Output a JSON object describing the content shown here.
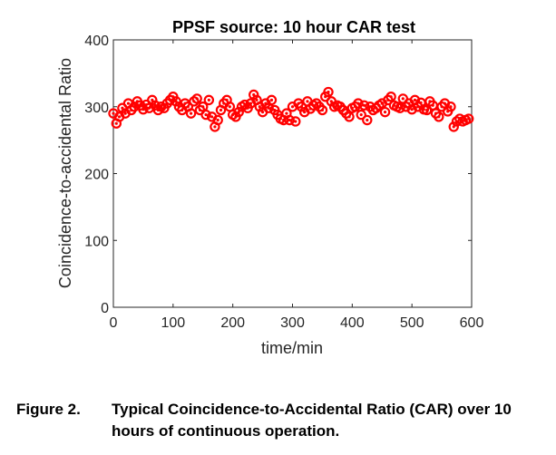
{
  "chart_data": {
    "type": "scatter",
    "title": "PPSF source: 10 hour CAR test",
    "xlabel": "time/min",
    "ylabel": "Coincidence-to-accidental Ratio",
    "xlim": [
      0,
      600
    ],
    "ylim": [
      0,
      400
    ],
    "xticks": [
      0,
      100,
      200,
      300,
      400,
      500,
      600
    ],
    "yticks": [
      0,
      100,
      200,
      300,
      400
    ],
    "grid": false,
    "marker": "circle",
    "series": [
      {
        "name": "CAR",
        "color": "#ff0000",
        "x": [
          0,
          5,
          10,
          15,
          20,
          25,
          30,
          35,
          40,
          45,
          50,
          55,
          60,
          65,
          70,
          75,
          80,
          85,
          90,
          95,
          100,
          105,
          110,
          115,
          120,
          125,
          130,
          135,
          140,
          145,
          150,
          155,
          160,
          165,
          170,
          175,
          180,
          185,
          190,
          195,
          200,
          205,
          210,
          215,
          220,
          225,
          230,
          235,
          240,
          245,
          250,
          255,
          260,
          265,
          270,
          275,
          280,
          285,
          290,
          295,
          300,
          305,
          310,
          315,
          320,
          325,
          330,
          335,
          340,
          345,
          350,
          355,
          360,
          365,
          370,
          375,
          380,
          385,
          390,
          395,
          400,
          405,
          410,
          415,
          420,
          425,
          430,
          435,
          440,
          445,
          450,
          455,
          460,
          465,
          470,
          475,
          480,
          485,
          490,
          495,
          500,
          505,
          510,
          515,
          520,
          525,
          530,
          535,
          540,
          545,
          550,
          555,
          560,
          565,
          570,
          575,
          580,
          585,
          590,
          595
        ],
        "values": [
          290,
          275,
          285,
          298,
          290,
          305,
          295,
          300,
          308,
          302,
          296,
          303,
          298,
          310,
          302,
          295,
          300,
          298,
          305,
          310,
          315,
          308,
          300,
          295,
          305,
          300,
          290,
          308,
          312,
          295,
          300,
          288,
          310,
          285,
          270,
          280,
          295,
          305,
          310,
          300,
          288,
          285,
          292,
          300,
          303,
          298,
          305,
          318,
          310,
          300,
          292,
          305,
          298,
          310,
          295,
          288,
          282,
          280,
          290,
          280,
          300,
          278,
          305,
          300,
          292,
          308,
          297,
          302,
          305,
          300,
          295,
          315,
          322,
          308,
          300,
          302,
          300,
          295,
          290,
          285,
          298,
          300,
          305,
          288,
          302,
          280,
          300,
          295,
          298,
          302,
          305,
          292,
          310,
          315,
          302,
          300,
          298,
          312,
          300,
          305,
          296,
          310,
          300,
          306,
          296,
          295,
          308,
          302,
          290,
          285,
          300,
          305,
          293,
          300,
          270,
          278,
          282,
          278,
          280,
          282
        ]
      }
    ]
  },
  "caption": {
    "label": "Figure 2.",
    "text": "Typical Coincidence-to-Accidental Ratio (CAR) over 10 hours of continuous operation."
  }
}
